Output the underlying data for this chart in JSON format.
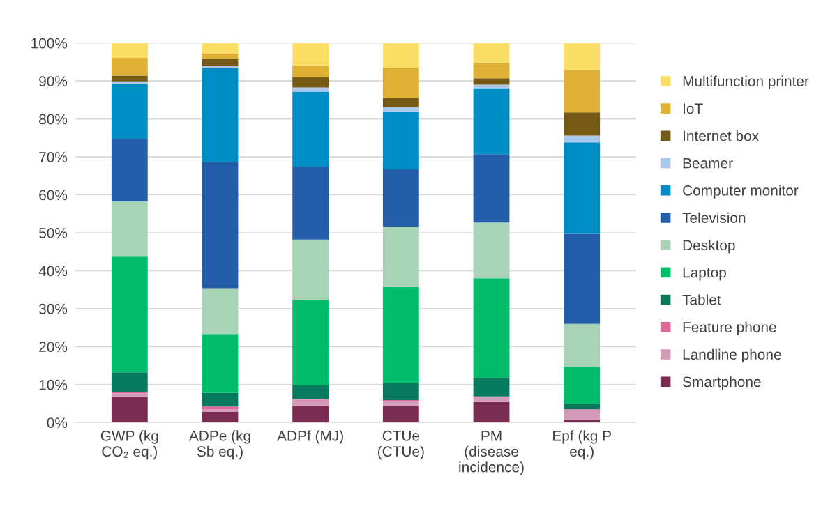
{
  "chart_data": {
    "type": "bar",
    "stacked": true,
    "categories": [
      "GWP (kg\nCO₂ eq.)",
      "ADPe (kg\nSb eq.)",
      "ADPf (MJ)",
      "CTUe\n(CTUe)",
      "PM\n(disease\nincidence)",
      "Epf (kg P\neq.)"
    ],
    "series": [
      {
        "name": "Smartphone",
        "color": "#7b2c52",
        "values": [
          6.8,
          2.8,
          4.5,
          4.3,
          5.4,
          0.7
        ]
      },
      {
        "name": "Landline phone",
        "color": "#d49bb8",
        "values": [
          0.9,
          0.7,
          1.5,
          1.4,
          1.3,
          2.7
        ]
      },
      {
        "name": "Feature phone",
        "color": "#e0679b",
        "values": [
          0.4,
          0.7,
          0.2,
          0.2,
          0.2,
          0.1
        ]
      },
      {
        "name": "Tablet",
        "color": "#077a5e",
        "values": [
          5.1,
          3.6,
          3.6,
          4.5,
          4.8,
          1.4
        ]
      },
      {
        "name": "Laptop",
        "color": "#00bd6c",
        "values": [
          30.5,
          15.5,
          22.4,
          25.3,
          26.3,
          9.8
        ]
      },
      {
        "name": "Desktop",
        "color": "#a9d3b7",
        "values": [
          14.6,
          12.1,
          16.0,
          15.9,
          14.7,
          11.3
        ]
      },
      {
        "name": "Television",
        "color": "#245ea8",
        "values": [
          16.4,
          33.3,
          19.1,
          15.1,
          18.0,
          23.7
        ]
      },
      {
        "name": "Computer monitor",
        "color": "#008cc5",
        "values": [
          14.5,
          24.7,
          19.9,
          15.3,
          17.4,
          24.1
        ]
      },
      {
        "name": "Beamer",
        "color": "#a9c8ec",
        "values": [
          0.7,
          0.5,
          1.1,
          1.1,
          0.9,
          1.8
        ]
      },
      {
        "name": "Internet box",
        "color": "#745a15",
        "values": [
          1.5,
          1.9,
          2.7,
          2.4,
          1.7,
          6.1
        ]
      },
      {
        "name": "IoT",
        "color": "#deb035",
        "values": [
          4.7,
          1.5,
          3.1,
          8.0,
          4.2,
          11.2
        ]
      },
      {
        "name": "Multifunction printer",
        "color": "#fbde66",
        "values": [
          3.9,
          2.7,
          5.9,
          6.5,
          5.1,
          7.1
        ]
      }
    ],
    "ylim": [
      0,
      100
    ],
    "yticks": [
      {
        "value": 0,
        "label": "0%"
      },
      {
        "value": 10,
        "label": "10%"
      },
      {
        "value": 20,
        "label": "20%"
      },
      {
        "value": 30,
        "label": "30%"
      },
      {
        "value": 40,
        "label": "40%"
      },
      {
        "value": 50,
        "label": "50%"
      },
      {
        "value": 60,
        "label": "60%"
      },
      {
        "value": 70,
        "label": "70%"
      },
      {
        "value": 80,
        "label": "80%"
      },
      {
        "value": 90,
        "label": "90%"
      },
      {
        "value": 100,
        "label": "100%"
      }
    ],
    "grid": "y",
    "legend": "right"
  }
}
